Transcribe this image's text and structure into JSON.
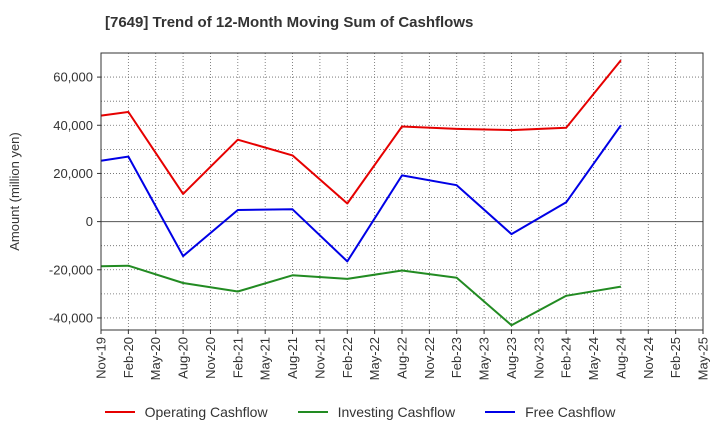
{
  "title": "[7649]  Trend of 12-Month Moving Sum of Cashflows",
  "chart_data": {
    "type": "line",
    "title": "[7649]  Trend of 12-Month Moving Sum of Cashflows",
    "xlabel": "",
    "ylabel": "Amount (million yen)",
    "x": [
      "Nov-19",
      "Feb-20",
      "May-20",
      "Aug-20",
      "Nov-20",
      "Feb-21",
      "May-21",
      "Aug-21",
      "Nov-21",
      "Feb-22",
      "May-22",
      "Aug-22",
      "Nov-22",
      "Feb-23",
      "May-23",
      "Aug-23",
      "Nov-23",
      "Feb-24",
      "May-24",
      "Aug-24",
      "Nov-24",
      "Feb-25",
      "May-25"
    ],
    "ylim": [
      -45000,
      70000
    ],
    "yticks": [
      -40000,
      -20000,
      0,
      20000,
      40000,
      60000
    ],
    "ytick_labels": [
      "-40,000",
      "-20,000",
      "0",
      "20,000",
      "40,000",
      "60,000"
    ],
    "grid": true,
    "legend_position": "bottom",
    "series": [
      {
        "name": "Operating Cashflow",
        "color": "#e60000",
        "values": [
          44000,
          45500,
          null,
          11500,
          null,
          34000,
          null,
          27500,
          null,
          7500,
          null,
          39500,
          null,
          38500,
          null,
          38000,
          null,
          39000,
          null,
          67000,
          null,
          null,
          null
        ]
      },
      {
        "name": "Investing Cashflow",
        "color": "#228b22",
        "values": [
          -18500,
          -18300,
          null,
          -25500,
          null,
          -29000,
          null,
          -22300,
          null,
          -23800,
          null,
          -20300,
          null,
          -23300,
          null,
          -43000,
          null,
          -30800,
          null,
          -27000,
          null,
          null,
          null
        ]
      },
      {
        "name": "Free Cashflow",
        "color": "#0000e6",
        "values": [
          25300,
          27000,
          null,
          -14300,
          null,
          4800,
          null,
          5100,
          null,
          -16500,
          null,
          19200,
          null,
          15100,
          null,
          -5200,
          null,
          8000,
          null,
          40000,
          null,
          null,
          null
        ]
      }
    ]
  }
}
